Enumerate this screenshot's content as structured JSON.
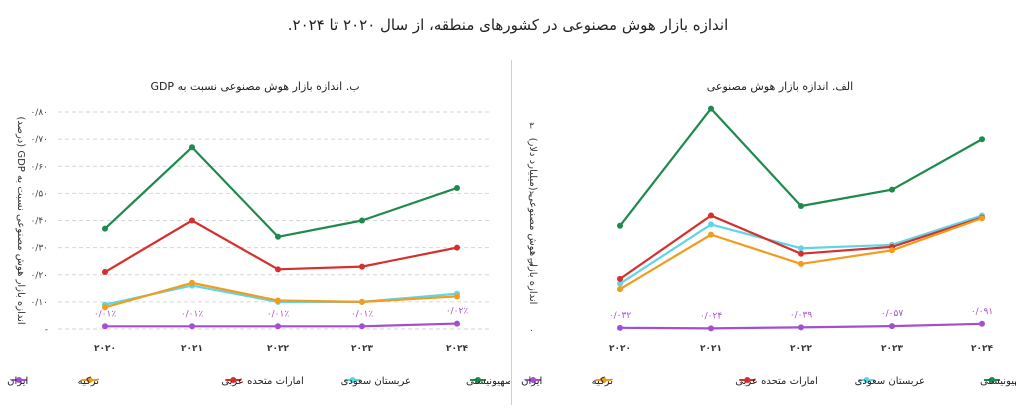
{
  "title": "اندازه بازار هوش مصنوعی در کشورهای منطقه، از سال ۲۰۲۰ تا ۲۰۲۴.",
  "colors": {
    "rezhim": "#1f8a4c",
    "saudi": "#5fd6e6",
    "uae": "#d62f2f",
    "turkey": "#f29b1d",
    "iran": "#a24fd1"
  },
  "chart_data": [
    {
      "id": "left",
      "type": "line",
      "title": "ب. اندازه بازار هوش مصنوعی نسبت به GDP",
      "ylabel": "اندازه بازار هوش مصنوعی نسبت به GDP (درصد)",
      "xlabel": "",
      "x": [
        "۲۰۲۰",
        "۲۰۲۱",
        "۲۰۲۲",
        "۲۰۲۳",
        "۲۰۲۴"
      ],
      "ylim": [
        0,
        0.8
      ],
      "yticks": [
        0,
        0.1,
        0.2,
        0.3,
        0.4,
        0.5,
        0.6,
        0.7,
        0.8
      ],
      "ytick_labels": [
        "-",
        "۰/۱۰",
        "۰/۲۰",
        "۰/۳۰",
        "۰/۴۰",
        "۰/۵۰",
        "۰/۶۰",
        "۰/۷۰",
        "۰/۸۰"
      ],
      "grid": "horizontal-dashed",
      "series": [
        {
          "key": "rezhim",
          "name": "رژیم صهیونیستی",
          "values": [
            0.37,
            0.67,
            0.34,
            0.4,
            0.52
          ]
        },
        {
          "key": "saudi",
          "name": "عربستان سعودی",
          "values": [
            0.09,
            0.16,
            0.1,
            0.1,
            0.13
          ]
        },
        {
          "key": "uae",
          "name": "امارات متحده عربی",
          "values": [
            0.21,
            0.4,
            0.22,
            0.23,
            0.3
          ]
        },
        {
          "key": "turkey",
          "name": "ترکیه",
          "values": [
            0.08,
            0.17,
            0.105,
            0.1,
            0.12
          ]
        },
        {
          "key": "iran",
          "name": "ایران",
          "values": [
            0.01,
            0.01,
            0.01,
            0.01,
            0.02
          ],
          "data_labels": [
            "۰/۰۱٪",
            "۰/۰۱٪",
            "۰/۰۱٪",
            "۰/۰۱٪",
            "۰/۰۲٪"
          ]
        }
      ],
      "legend_position": "bottom"
    },
    {
      "id": "right",
      "type": "line",
      "title": "الف. اندازه بازار هوش مصنوعی",
      "ylabel": "اندازه بازار هوش مصنوعی (میلیارد دلار)",
      "xlabel": "",
      "x": [
        "۲۰۲۰",
        "۲۰۲۱",
        "۲۰۲۲",
        "۲۰۲۳",
        "۲۰۲۴"
      ],
      "ylim": [
        0,
        3.2
      ],
      "yticks": [
        0,
        1,
        2,
        3
      ],
      "ytick_labels": [
        "۰",
        "1",
        "۲",
        "۳"
      ],
      "grid": "none",
      "series": [
        {
          "key": "rezhim",
          "name": "رژیم صهیونیستی",
          "values": [
            1.53,
            3.25,
            1.82,
            2.06,
            2.8
          ]
        },
        {
          "key": "saudi",
          "name": "عربستان سعودی",
          "values": [
            0.68,
            1.55,
            1.2,
            1.25,
            1.68
          ]
        },
        {
          "key": "uae",
          "name": "امارات متحده عربی",
          "values": [
            0.75,
            1.68,
            1.12,
            1.22,
            1.65
          ]
        },
        {
          "key": "turkey",
          "name": "ترکیه",
          "values": [
            0.6,
            1.4,
            0.97,
            1.17,
            1.64
          ]
        },
        {
          "key": "iran",
          "name": "ایران",
          "values": [
            0.032,
            0.024,
            0.039,
            0.057,
            0.091
          ],
          "data_labels": [
            "۰/۰۳۲",
            "۰/۰۲۴",
            "۰/۰۳۹",
            "۰/۰۵۷",
            "۰/۰۹۱"
          ]
        }
      ],
      "legend_position": "bottom"
    }
  ]
}
